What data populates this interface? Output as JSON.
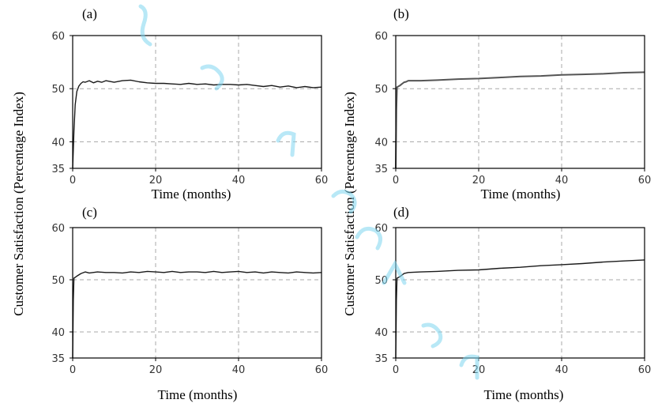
{
  "figure": {
    "ylabel": "Customer Satisfaction (Percentage Index)",
    "watermark_color": "#7fd6f0"
  },
  "chart_data": [
    {
      "type": "line",
      "panel_label": "(a)",
      "xlabel": "Time (months)",
      "xlim": [
        0,
        60
      ],
      "ylim": [
        35,
        60
      ],
      "xticks": [
        "0",
        "20",
        "40",
        "60"
      ],
      "yticks": [
        "35",
        "40",
        "50",
        "60"
      ],
      "grid": true,
      "series": [
        {
          "x": [
            0,
            0.3,
            0.6,
            1,
            1.5,
            2,
            2.5,
            3,
            4,
            5,
            6,
            7,
            8,
            10,
            12,
            14,
            16,
            18,
            20,
            22,
            24,
            26,
            28,
            30,
            32,
            34,
            36,
            38,
            40,
            42,
            44,
            46,
            48,
            50,
            52,
            54,
            56,
            58,
            60
          ],
          "y": [
            35,
            42,
            47,
            49.5,
            50.5,
            51,
            51.3,
            51.2,
            51.5,
            51.1,
            51.4,
            51.2,
            51.5,
            51.2,
            51.5,
            51.6,
            51.3,
            51.1,
            51.0,
            51.0,
            50.9,
            50.8,
            51.0,
            50.8,
            50.9,
            50.7,
            50.8,
            50.8,
            50.7,
            50.8,
            50.6,
            50.4,
            50.6,
            50.3,
            50.5,
            50.2,
            50.4,
            50.2,
            50.3
          ]
        }
      ]
    },
    {
      "type": "line",
      "panel_label": "(b)",
      "xlabel": "Time (months)",
      "xlim": [
        0,
        60
      ],
      "ylim": [
        35,
        60
      ],
      "xticks": [
        "0",
        "20",
        "40",
        "60"
      ],
      "yticks": [
        "35",
        "40",
        "50",
        "60"
      ],
      "grid": true,
      "series": [
        {
          "x": [
            0,
            0.15,
            0.3,
            1,
            2,
            2.5,
            3,
            6,
            10,
            15,
            20,
            25,
            30,
            35,
            40,
            45,
            50,
            55,
            60
          ],
          "y": [
            35,
            46,
            50.3,
            50.6,
            51.2,
            51.3,
            51.5,
            51.5,
            51.6,
            51.8,
            51.9,
            52.1,
            52.3,
            52.4,
            52.6,
            52.7,
            52.8,
            53.0,
            53.1
          ]
        }
      ]
    },
    {
      "type": "line",
      "panel_label": "(c)",
      "xlabel": "Time (months)",
      "xlim": [
        0,
        60
      ],
      "ylim": [
        35,
        60
      ],
      "xticks": [
        "0",
        "20",
        "40",
        "60"
      ],
      "yticks": [
        "35",
        "40",
        "50",
        "60"
      ],
      "grid": true,
      "series": [
        {
          "x": [
            0,
            0.15,
            0.3,
            1,
            2,
            3,
            4,
            6,
            8,
            10,
            12,
            14,
            16,
            18,
            20,
            22,
            24,
            26,
            28,
            30,
            32,
            34,
            36,
            38,
            40,
            42,
            44,
            46,
            48,
            50,
            52,
            54,
            56,
            58,
            60
          ],
          "y": [
            35,
            46,
            50.3,
            50.7,
            51.2,
            51.5,
            51.3,
            51.5,
            51.4,
            51.4,
            51.3,
            51.5,
            51.4,
            51.6,
            51.5,
            51.4,
            51.6,
            51.4,
            51.5,
            51.5,
            51.4,
            51.6,
            51.4,
            51.5,
            51.6,
            51.4,
            51.5,
            51.3,
            51.5,
            51.4,
            51.3,
            51.5,
            51.4,
            51.3,
            51.4
          ]
        }
      ]
    },
    {
      "type": "line",
      "panel_label": "(d)",
      "xlabel": "Time (months)",
      "xlim": [
        0,
        60
      ],
      "ylim": [
        35,
        60
      ],
      "xticks": [
        "0",
        "20",
        "40",
        "60"
      ],
      "yticks": [
        "35",
        "40",
        "50",
        "60"
      ],
      "grid": true,
      "series": [
        {
          "x": [
            0,
            0.15,
            0.3,
            1,
            2,
            3,
            6,
            10,
            15,
            20,
            25,
            30,
            35,
            40,
            45,
            50,
            55,
            60
          ],
          "y": [
            35,
            46,
            50.3,
            50.6,
            51.2,
            51.4,
            51.5,
            51.6,
            51.8,
            51.9,
            52.2,
            52.4,
            52.7,
            52.9,
            53.1,
            53.4,
            53.6,
            53.8
          ]
        }
      ]
    }
  ]
}
